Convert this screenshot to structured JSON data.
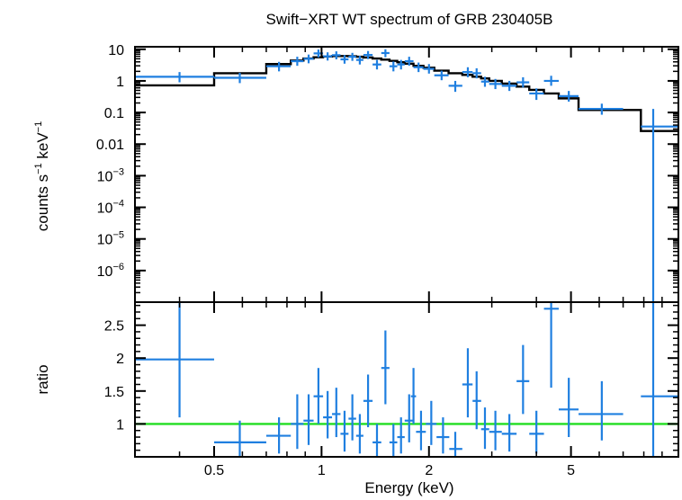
{
  "chart_data": {
    "type": "scatter",
    "title": "Swift−XRT WT spectrum of GRB 230405B",
    "xlabel": "Energy (keV)",
    "x_scale": "log",
    "xlim": [
      0.3,
      10
    ],
    "x_ticks": [
      {
        "value": 0.5,
        "label": "0.5"
      },
      {
        "value": 1,
        "label": "1"
      },
      {
        "value": 2,
        "label": "2"
      },
      {
        "value": 5,
        "label": "5"
      }
    ],
    "colors": {
      "data": "#1f7fe0",
      "model": "#000000",
      "unity": "#22dd22"
    },
    "top_panel": {
      "ylabel_main": "counts s",
      "ylabel_sup1": "−1",
      "ylabel_mid": " keV",
      "ylabel_sup2": "−1",
      "y_scale": "log",
      "ylim": [
        1e-07,
        12
      ],
      "y_ticks": [
        {
          "value": 10,
          "label": "10"
        },
        {
          "value": 1,
          "label": "1"
        },
        {
          "value": 0.1,
          "label": "0.1"
        },
        {
          "value": 0.01,
          "label": "0.01"
        },
        {
          "value": 0.001,
          "label": "10",
          "sup": "−3"
        },
        {
          "value": 0.0001,
          "label": "10",
          "sup": "−4"
        },
        {
          "value": 1e-05,
          "label": "10",
          "sup": "−5"
        },
        {
          "value": 1e-06,
          "label": "10",
          "sup": "−6"
        }
      ],
      "data": [
        {
          "x": 0.4,
          "xlo": 0.3,
          "xhi": 0.5,
          "y": 1.35,
          "ylo": 0.9,
          "yhi": 1.9
        },
        {
          "x": 0.59,
          "xlo": 0.5,
          "xhi": 0.7,
          "y": 1.25,
          "ylo": 0.85,
          "yhi": 1.8
        },
        {
          "x": 0.76,
          "xlo": 0.7,
          "xhi": 0.82,
          "y": 2.9,
          "ylo": 2.0,
          "yhi": 4.0
        },
        {
          "x": 0.855,
          "xlo": 0.82,
          "xhi": 0.89,
          "y": 4.2,
          "ylo": 3.0,
          "yhi": 5.8
        },
        {
          "x": 0.92,
          "xlo": 0.89,
          "xhi": 0.95,
          "y": 5.0,
          "ylo": 3.6,
          "yhi": 6.8
        },
        {
          "x": 0.98,
          "xlo": 0.95,
          "xhi": 1.01,
          "y": 7.4,
          "ylo": 5.5,
          "yhi": 9.8
        },
        {
          "x": 1.04,
          "xlo": 1.01,
          "xhi": 1.07,
          "y": 6.0,
          "ylo": 4.4,
          "yhi": 8.0
        },
        {
          "x": 1.1,
          "xlo": 1.07,
          "xhi": 1.13,
          "y": 6.5,
          "ylo": 4.8,
          "yhi": 8.6
        },
        {
          "x": 1.16,
          "xlo": 1.13,
          "xhi": 1.19,
          "y": 4.8,
          "ylo": 3.5,
          "yhi": 6.5
        },
        {
          "x": 1.22,
          "xlo": 1.19,
          "xhi": 1.25,
          "y": 5.8,
          "ylo": 4.3,
          "yhi": 7.7
        },
        {
          "x": 1.28,
          "xlo": 1.25,
          "xhi": 1.31,
          "y": 4.6,
          "ylo": 3.3,
          "yhi": 6.2
        },
        {
          "x": 1.35,
          "xlo": 1.31,
          "xhi": 1.39,
          "y": 6.6,
          "ylo": 4.9,
          "yhi": 8.8
        },
        {
          "x": 1.43,
          "xlo": 1.39,
          "xhi": 1.47,
          "y": 3.3,
          "ylo": 2.3,
          "yhi": 4.6
        },
        {
          "x": 1.51,
          "xlo": 1.47,
          "xhi": 1.55,
          "y": 7.6,
          "ylo": 5.6,
          "yhi": 10.0
        },
        {
          "x": 1.59,
          "xlo": 1.55,
          "xhi": 1.63,
          "y": 2.9,
          "ylo": 2.0,
          "yhi": 4.1
        },
        {
          "x": 1.67,
          "xlo": 1.63,
          "xhi": 1.71,
          "y": 3.3,
          "ylo": 2.3,
          "yhi": 4.6
        },
        {
          "x": 1.76,
          "xlo": 1.71,
          "xhi": 1.81,
          "y": 4.2,
          "ylo": 3.0,
          "yhi": 5.8
        },
        {
          "x": 1.87,
          "xlo": 1.81,
          "xhi": 1.93,
          "y": 2.7,
          "ylo": 1.9,
          "yhi": 3.8
        },
        {
          "x": 2.0,
          "xlo": 1.93,
          "xhi": 2.07,
          "y": 2.4,
          "ylo": 1.7,
          "yhi": 3.4
        },
        {
          "x": 2.17,
          "xlo": 2.07,
          "xhi": 2.27,
          "y": 1.5,
          "ylo": 1.05,
          "yhi": 2.1
        },
        {
          "x": 2.37,
          "xlo": 2.27,
          "xhi": 2.48,
          "y": 0.7,
          "ylo": 0.45,
          "yhi": 1.0
        },
        {
          "x": 2.57,
          "xlo": 2.48,
          "xhi": 2.65,
          "y": 1.9,
          "ylo": 1.3,
          "yhi": 2.7
        },
        {
          "x": 2.72,
          "xlo": 2.65,
          "xhi": 2.8,
          "y": 1.75,
          "ylo": 1.2,
          "yhi": 2.5
        },
        {
          "x": 2.87,
          "xlo": 2.8,
          "xhi": 2.95,
          "y": 0.95,
          "ylo": 0.65,
          "yhi": 1.35
        },
        {
          "x": 3.07,
          "xlo": 2.95,
          "xhi": 3.2,
          "y": 0.8,
          "ylo": 0.55,
          "yhi": 1.15
        },
        {
          "x": 3.36,
          "xlo": 3.2,
          "xhi": 3.52,
          "y": 0.7,
          "ylo": 0.48,
          "yhi": 1.0
        },
        {
          "x": 3.67,
          "xlo": 3.52,
          "xhi": 3.82,
          "y": 0.9,
          "ylo": 0.62,
          "yhi": 1.3
        },
        {
          "x": 4.0,
          "xlo": 3.82,
          "xhi": 4.2,
          "y": 0.4,
          "ylo": 0.25,
          "yhi": 0.58
        },
        {
          "x": 4.4,
          "xlo": 4.2,
          "xhi": 4.62,
          "y": 1.0,
          "ylo": 0.7,
          "yhi": 1.45
        },
        {
          "x": 4.93,
          "xlo": 4.62,
          "xhi": 5.25,
          "y": 0.33,
          "ylo": 0.22,
          "yhi": 0.48
        },
        {
          "x": 6.1,
          "xlo": 5.25,
          "xhi": 7.0,
          "y": 0.13,
          "ylo": 0.085,
          "yhi": 0.19
        },
        {
          "x": 8.5,
          "xlo": 7.85,
          "xhi": 10.0,
          "y": 0.036,
          "ylo": 1e-07,
          "yhi": 0.13
        }
      ],
      "model_steps": [
        {
          "x0": 0.3,
          "x1": 0.5,
          "y": 0.72
        },
        {
          "x0": 0.5,
          "x1": 0.7,
          "y": 1.75
        },
        {
          "x0": 0.7,
          "x1": 0.82,
          "y": 3.4
        },
        {
          "x0": 0.82,
          "x1": 0.89,
          "y": 4.4
        },
        {
          "x0": 0.89,
          "x1": 0.95,
          "y": 5.1
        },
        {
          "x0": 0.95,
          "x1": 1.01,
          "y": 5.6
        },
        {
          "x0": 1.01,
          "x1": 1.07,
          "y": 5.9
        },
        {
          "x0": 1.07,
          "x1": 1.13,
          "y": 6.1
        },
        {
          "x0": 1.13,
          "x1": 1.19,
          "y": 6.1
        },
        {
          "x0": 1.19,
          "x1": 1.25,
          "y": 6.0
        },
        {
          "x0": 1.25,
          "x1": 1.31,
          "y": 5.8
        },
        {
          "x0": 1.31,
          "x1": 1.39,
          "y": 5.5
        },
        {
          "x0": 1.39,
          "x1": 1.47,
          "y": 5.1
        },
        {
          "x0": 1.47,
          "x1": 1.55,
          "y": 4.7
        },
        {
          "x0": 1.55,
          "x1": 1.63,
          "y": 4.3
        },
        {
          "x0": 1.63,
          "x1": 1.71,
          "y": 3.9
        },
        {
          "x0": 1.71,
          "x1": 1.81,
          "y": 3.5
        },
        {
          "x0": 1.81,
          "x1": 1.93,
          "y": 3.0
        },
        {
          "x0": 1.93,
          "x1": 2.07,
          "y": 2.6
        },
        {
          "x0": 2.07,
          "x1": 2.27,
          "y": 2.1
        },
        {
          "x0": 2.27,
          "x1": 2.48,
          "y": 1.75
        },
        {
          "x0": 2.48,
          "x1": 2.65,
          "y": 1.55
        },
        {
          "x0": 2.65,
          "x1": 2.8,
          "y": 1.35
        },
        {
          "x0": 2.8,
          "x1": 2.95,
          "y": 1.2
        },
        {
          "x0": 2.95,
          "x1": 3.2,
          "y": 1.0
        },
        {
          "x0": 3.2,
          "x1": 3.52,
          "y": 0.82
        },
        {
          "x0": 3.52,
          "x1": 3.82,
          "y": 0.66
        },
        {
          "x0": 3.82,
          "x1": 4.2,
          "y": 0.52
        },
        {
          "x0": 4.2,
          "x1": 4.62,
          "y": 0.4
        },
        {
          "x0": 4.62,
          "x1": 5.25,
          "y": 0.28
        },
        {
          "x0": 5.25,
          "x1": 7.0,
          "y": 0.12
        },
        {
          "x0": 7.0,
          "x1": 7.85,
          "y": 0.12
        },
        {
          "x0": 7.85,
          "x1": 10.0,
          "y": 0.026
        }
      ]
    },
    "bottom_panel": {
      "ylabel": "ratio",
      "y_scale": "linear",
      "ylim": [
        0.5,
        2.85
      ],
      "y_ticks": [
        {
          "value": 1,
          "label": "1"
        },
        {
          "value": 1.5,
          "label": "1.5"
        },
        {
          "value": 2,
          "label": "2"
        },
        {
          "value": 2.5,
          "label": "2.5"
        }
      ],
      "unity_line": 1,
      "data": [
        {
          "x": 0.4,
          "xlo": 0.3,
          "xhi": 0.5,
          "y": 1.98,
          "ylo": 1.1,
          "yhi": 2.85
        },
        {
          "x": 0.59,
          "xlo": 0.5,
          "xhi": 0.7,
          "y": 0.72,
          "ylo": 0.5,
          "yhi": 1.05
        },
        {
          "x": 0.76,
          "xlo": 0.7,
          "xhi": 0.82,
          "y": 0.82,
          "ylo": 0.55,
          "yhi": 1.1
        },
        {
          "x": 0.855,
          "xlo": 0.82,
          "xhi": 0.89,
          "y": 1.0,
          "ylo": 0.62,
          "yhi": 1.45
        },
        {
          "x": 0.92,
          "xlo": 0.89,
          "xhi": 0.95,
          "y": 1.05,
          "ylo": 0.68,
          "yhi": 1.45
        },
        {
          "x": 0.98,
          "xlo": 0.95,
          "xhi": 1.01,
          "y": 1.42,
          "ylo": 1.0,
          "yhi": 1.85
        },
        {
          "x": 1.04,
          "xlo": 1.01,
          "xhi": 1.07,
          "y": 1.1,
          "ylo": 0.78,
          "yhi": 1.5
        },
        {
          "x": 1.1,
          "xlo": 1.07,
          "xhi": 1.13,
          "y": 1.15,
          "ylo": 0.8,
          "yhi": 1.55
        },
        {
          "x": 1.16,
          "xlo": 1.13,
          "xhi": 1.19,
          "y": 0.85,
          "ylo": 0.58,
          "yhi": 1.2
        },
        {
          "x": 1.22,
          "xlo": 1.19,
          "xhi": 1.25,
          "y": 1.08,
          "ylo": 0.75,
          "yhi": 1.45
        },
        {
          "x": 1.28,
          "xlo": 1.25,
          "xhi": 1.31,
          "y": 0.82,
          "ylo": 0.55,
          "yhi": 1.15
        },
        {
          "x": 1.35,
          "xlo": 1.31,
          "xhi": 1.39,
          "y": 1.35,
          "ylo": 0.95,
          "yhi": 1.75
        },
        {
          "x": 1.43,
          "xlo": 1.39,
          "xhi": 1.47,
          "y": 0.72,
          "ylo": 0.5,
          "yhi": 1.0
        },
        {
          "x": 1.51,
          "xlo": 1.47,
          "xhi": 1.55,
          "y": 1.85,
          "ylo": 1.3,
          "yhi": 2.42
        },
        {
          "x": 1.59,
          "xlo": 1.55,
          "xhi": 1.63,
          "y": 0.72,
          "ylo": 0.5,
          "yhi": 1.0
        },
        {
          "x": 1.67,
          "xlo": 1.63,
          "xhi": 1.71,
          "y": 0.8,
          "ylo": 0.55,
          "yhi": 1.1
        },
        {
          "x": 1.76,
          "xlo": 1.71,
          "xhi": 1.81,
          "y": 1.05,
          "ylo": 0.72,
          "yhi": 1.45
        },
        {
          "x": 1.81,
          "xlo": 1.78,
          "xhi": 1.84,
          "y": 1.42,
          "ylo": 1.0,
          "yhi": 1.85
        },
        {
          "x": 1.9,
          "xlo": 1.84,
          "xhi": 1.96,
          "y": 0.88,
          "ylo": 0.6,
          "yhi": 1.2
        },
        {
          "x": 2.03,
          "xlo": 1.96,
          "xhi": 2.1,
          "y": 1.0,
          "ylo": 0.68,
          "yhi": 1.35
        },
        {
          "x": 2.19,
          "xlo": 2.1,
          "xhi": 2.28,
          "y": 0.8,
          "ylo": 0.55,
          "yhi": 1.1
        },
        {
          "x": 2.37,
          "xlo": 2.28,
          "xhi": 2.48,
          "y": 0.62,
          "ylo": 0.5,
          "yhi": 0.88
        },
        {
          "x": 2.57,
          "xlo": 2.48,
          "xhi": 2.65,
          "y": 1.6,
          "ylo": 1.1,
          "yhi": 2.15
        },
        {
          "x": 2.72,
          "xlo": 2.65,
          "xhi": 2.8,
          "y": 1.35,
          "ylo": 0.92,
          "yhi": 1.8
        },
        {
          "x": 2.87,
          "xlo": 2.8,
          "xhi": 2.95,
          "y": 0.92,
          "ylo": 0.62,
          "yhi": 1.25
        },
        {
          "x": 3.07,
          "xlo": 2.95,
          "xhi": 3.2,
          "y": 0.88,
          "ylo": 0.6,
          "yhi": 1.2
        },
        {
          "x": 3.36,
          "xlo": 3.2,
          "xhi": 3.52,
          "y": 0.85,
          "ylo": 0.58,
          "yhi": 1.15
        },
        {
          "x": 3.67,
          "xlo": 3.52,
          "xhi": 3.82,
          "y": 1.65,
          "ylo": 1.15,
          "yhi": 2.2
        },
        {
          "x": 4.0,
          "xlo": 3.82,
          "xhi": 4.2,
          "y": 0.85,
          "ylo": 0.55,
          "yhi": 1.2
        },
        {
          "x": 4.4,
          "xlo": 4.2,
          "xhi": 4.62,
          "y": 2.75,
          "ylo": 1.55,
          "yhi": 2.85
        },
        {
          "x": 4.93,
          "xlo": 4.62,
          "xhi": 5.25,
          "y": 1.22,
          "ylo": 0.8,
          "yhi": 1.7
        },
        {
          "x": 6.1,
          "xlo": 5.25,
          "xhi": 7.0,
          "y": 1.15,
          "ylo": 0.75,
          "yhi": 1.65
        },
        {
          "x": 8.5,
          "xlo": 7.85,
          "xhi": 10.0,
          "y": 1.42,
          "ylo": 0.5,
          "yhi": 2.85
        }
      ]
    }
  }
}
